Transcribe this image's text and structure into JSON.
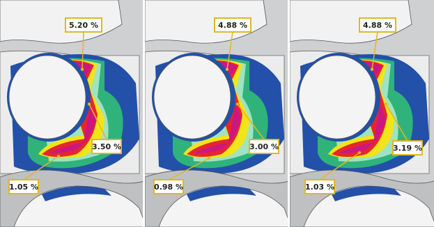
{
  "panels": [
    {
      "labels": [
        "5.20 %",
        "3.50 %",
        "1.05 %"
      ]
    },
    {
      "labels": [
        "4.88 %",
        "3.00 %",
        "0.98 %"
      ]
    },
    {
      "labels": [
        "4.88 %",
        "3.19 %",
        "1.03 %"
      ]
    }
  ]
}
